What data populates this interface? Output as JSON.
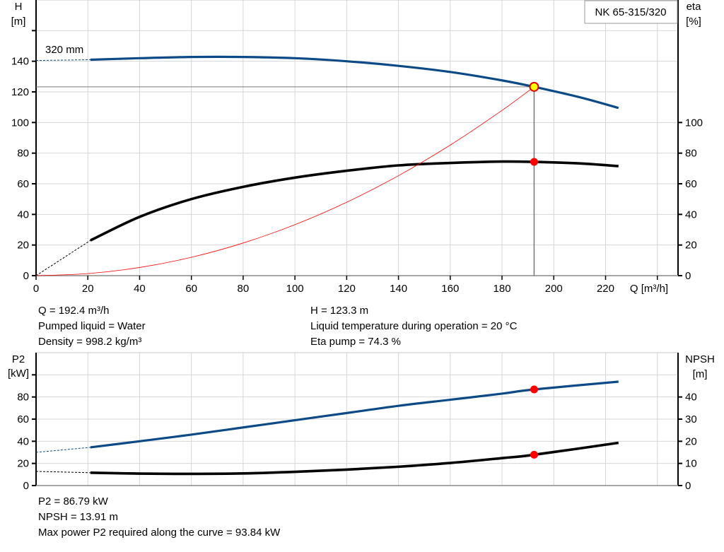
{
  "chart_data": [
    {
      "type": "line",
      "title": "NK 65-315/320",
      "xlabel": "Q [m³/h]",
      "ylabel": "H\n[m]",
      "ylabel_right": "eta\n[%]",
      "xlim": [
        0,
        248
      ],
      "ylim": [
        0,
        180
      ],
      "ylim_right": [
        0,
        180
      ],
      "xticks": [
        0,
        20,
        40,
        60,
        80,
        100,
        120,
        140,
        160,
        180,
        200,
        220
      ],
      "yticks": [
        0,
        20,
        40,
        60,
        80,
        100,
        120,
        140
      ],
      "yticks_right": [
        0,
        20,
        40,
        60,
        80,
        100
      ],
      "grid": true,
      "curve_label": "320 mm",
      "series": [
        {
          "id": "H",
          "axis": "left",
          "color": "#0b4a86",
          "x": [
            21,
            40,
            60,
            80,
            100,
            120,
            140,
            160,
            180,
            192.4,
            210,
            225
          ],
          "y": [
            141,
            142,
            142.8,
            142.8,
            142,
            140,
            137,
            133,
            127.5,
            123.3,
            116.5,
            109.5
          ],
          "extrapolated_from": [
            0,
            140.5
          ]
        },
        {
          "id": "eta",
          "axis": "right",
          "color": "#000000",
          "x": [
            21,
            40,
            60,
            80,
            100,
            120,
            140,
            160,
            180,
            192.4,
            210,
            225
          ],
          "y": [
            23,
            38.4,
            50,
            58,
            64,
            68.5,
            72,
            73.6,
            74.5,
            74.3,
            73.3,
            71.5
          ],
          "extrapolated_from": [
            0,
            0
          ]
        },
        {
          "id": "system",
          "axis": "left",
          "color": "#ff0000",
          "x": [
            0,
            20,
            40,
            60,
            80,
            100,
            120,
            140,
            160,
            180,
            192.4
          ],
          "y": [
            0,
            1.33,
            5.33,
            11.99,
            21.32,
            33.31,
            47.96,
            65.28,
            85.27,
            107.91,
            123.3
          ]
        }
      ],
      "operating_point": {
        "Q": 192.4,
        "H": 123.3,
        "eta": 74.3
      }
    },
    {
      "type": "line",
      "xlabel": "",
      "ylabel": "P2\n[kW]",
      "ylabel_right": "NPSH\n[m]",
      "xlim": [
        0,
        248
      ],
      "ylim": [
        0,
        120
      ],
      "ylim_right": [
        0,
        60
      ],
      "yticks": [
        0,
        20,
        40,
        60,
        80
      ],
      "yticks_right": [
        0,
        10,
        20,
        30,
        40
      ],
      "grid": true,
      "series": [
        {
          "id": "P2",
          "axis": "left",
          "color": "#0b4a86",
          "x": [
            21,
            40,
            60,
            80,
            100,
            120,
            140,
            160,
            180,
            192.4,
            225
          ],
          "y": [
            34.5,
            40,
            46,
            52.5,
            59,
            65.5,
            72,
            77.5,
            83,
            86.79,
            93.84
          ],
          "extrapolated_from": [
            0,
            30
          ]
        },
        {
          "id": "NPSH",
          "axis": "right",
          "color": "#000000",
          "x": [
            21,
            40,
            60,
            80,
            100,
            120,
            140,
            160,
            180,
            192.4,
            225
          ],
          "y": [
            5.8,
            5.4,
            5.3,
            5.5,
            6.2,
            7.2,
            8.5,
            10.2,
            12.4,
            13.91,
            19.3
          ],
          "extrapolated_from": [
            0,
            6.4
          ]
        }
      ],
      "operating_point": {
        "Q": 192.4,
        "P2": 86.79,
        "NPSH": 13.91
      }
    }
  ],
  "info_top": {
    "left": [
      "Q = 192.4 m³/h",
      "Pumped liquid = Water",
      "Density = 998.2 kg/m³"
    ],
    "right": [
      "H = 123.3 m",
      "Liquid temperature during operation = 20 °C",
      "Eta pump = 74.3 %"
    ]
  },
  "info_bottom": [
    "P2 = 86.79 kW",
    "NPSH = 13.91 m",
    "Max power P2 required along the curve = 93.84 kW"
  ]
}
